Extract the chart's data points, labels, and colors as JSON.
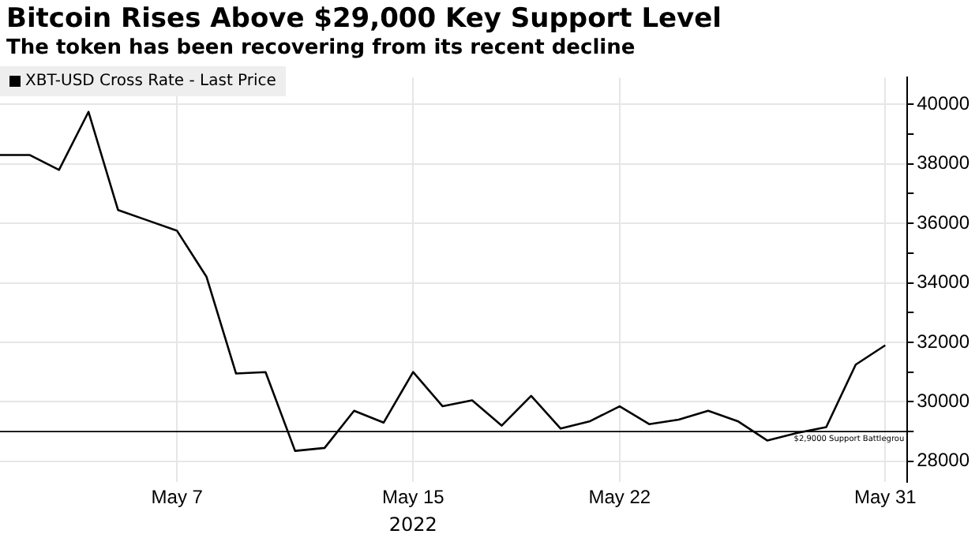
{
  "chart_data": {
    "type": "line",
    "title": "Bitcoin Rises Above $29,000 Key Support Level",
    "subtitle": "The token has been recovering from its recent decline",
    "xlabel": "2022",
    "x": [
      "2022-05-01",
      "2022-05-02",
      "2022-05-03",
      "2022-05-04",
      "2022-05-05",
      "2022-05-06",
      "2022-05-07",
      "2022-05-08",
      "2022-05-09",
      "2022-05-10",
      "2022-05-11",
      "2022-05-12",
      "2022-05-13",
      "2022-05-14",
      "2022-05-15",
      "2022-05-16",
      "2022-05-17",
      "2022-05-18",
      "2022-05-19",
      "2022-05-20",
      "2022-05-21",
      "2022-05-22",
      "2022-05-23",
      "2022-05-24",
      "2022-05-25",
      "2022-05-26",
      "2022-05-27",
      "2022-05-28",
      "2022-05-29",
      "2022-05-30",
      "2022-05-31"
    ],
    "series": [
      {
        "name": "XBT-USD Cross Rate - Last Price",
        "color": "#000000",
        "values": [
          38300,
          38300,
          37800,
          39750,
          36450,
          36100,
          35750,
          34200,
          30950,
          31000,
          28350,
          28450,
          29700,
          29300,
          31000,
          29850,
          30050,
          29200,
          30200,
          29100,
          29350,
          29850,
          29250,
          29400,
          29700,
          29350,
          28700,
          28950,
          29150,
          31250,
          31900
        ]
      }
    ],
    "xlim": [
      "2022-05-01",
      "2022-05-31T18:00"
    ],
    "xticks": [
      {
        "value": "2022-05-07",
        "label": "May 7"
      },
      {
        "value": "2022-05-15",
        "label": "May 15"
      },
      {
        "value": "2022-05-22",
        "label": "May 22"
      },
      {
        "value": "2022-05-31",
        "label": "May 31"
      }
    ],
    "ylim": [
      27300,
      40900
    ],
    "yticks": [
      28000,
      {
        "value": 29000,
        "label": null
      },
      30000,
      {
        "value": 31000,
        "label": null
      },
      32000,
      {
        "value": 33000,
        "label": null
      },
      34000,
      {
        "value": 35000,
        "label": null
      },
      36000,
      {
        "value": 37000,
        "label": null
      },
      38000,
      {
        "value": 39000,
        "label": null
      },
      40000
    ],
    "ref_lines": [
      {
        "axis": "y",
        "value": 29000,
        "label": "$2,9000 Support Battlegrou",
        "color": "#000000"
      }
    ],
    "grid": true,
    "legend": "top left",
    "marker": "none",
    "line_style": "solid"
  }
}
